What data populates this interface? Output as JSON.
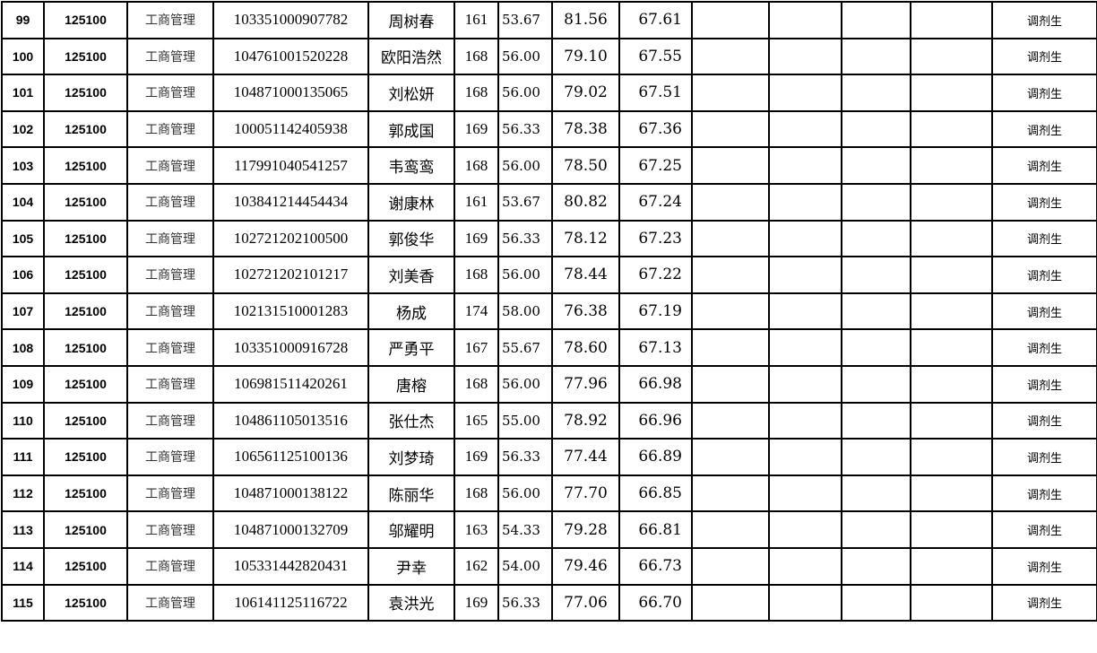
{
  "rows": [
    {
      "no": "99",
      "code": "125100",
      "major": "工商管理",
      "id": "103351000907782",
      "name": "周树春",
      "total": "161",
      "s1": "53.67",
      "s2": "81.56",
      "final": "67.61",
      "note": "调剂生"
    },
    {
      "no": "100",
      "code": "125100",
      "major": "工商管理",
      "id": "104761001520228",
      "name": "欧阳浩然",
      "total": "168",
      "s1": "56.00",
      "s2": "79.10",
      "final": "67.55",
      "note": "调剂生"
    },
    {
      "no": "101",
      "code": "125100",
      "major": "工商管理",
      "id": "104871000135065",
      "name": "刘松妍",
      "total": "168",
      "s1": "56.00",
      "s2": "79.02",
      "final": "67.51",
      "note": "调剂生"
    },
    {
      "no": "102",
      "code": "125100",
      "major": "工商管理",
      "id": "100051142405938",
      "name": "郭成国",
      "total": "169",
      "s1": "56.33",
      "s2": "78.38",
      "final": "67.36",
      "note": "调剂生"
    },
    {
      "no": "103",
      "code": "125100",
      "major": "工商管理",
      "id": "117991040541257",
      "name": "韦鸾鸾",
      "total": "168",
      "s1": "56.00",
      "s2": "78.50",
      "final": "67.25",
      "note": "调剂生"
    },
    {
      "no": "104",
      "code": "125100",
      "major": "工商管理",
      "id": "103841214454434",
      "name": "谢康林",
      "total": "161",
      "s1": "53.67",
      "s2": "80.82",
      "final": "67.24",
      "note": "调剂生"
    },
    {
      "no": "105",
      "code": "125100",
      "major": "工商管理",
      "id": "102721202100500",
      "name": "郭俊华",
      "total": "169",
      "s1": "56.33",
      "s2": "78.12",
      "final": "67.23",
      "note": "调剂生"
    },
    {
      "no": "106",
      "code": "125100",
      "major": "工商管理",
      "id": "102721202101217",
      "name": "刘美香",
      "total": "168",
      "s1": "56.00",
      "s2": "78.44",
      "final": "67.22",
      "note": "调剂生"
    },
    {
      "no": "107",
      "code": "125100",
      "major": "工商管理",
      "id": "102131510001283",
      "name": "杨成",
      "total": "174",
      "s1": "58.00",
      "s2": "76.38",
      "final": "67.19",
      "note": "调剂生"
    },
    {
      "no": "108",
      "code": "125100",
      "major": "工商管理",
      "id": "103351000916728",
      "name": "严勇平",
      "total": "167",
      "s1": "55.67",
      "s2": "78.60",
      "final": "67.13",
      "note": "调剂生"
    },
    {
      "no": "109",
      "code": "125100",
      "major": "工商管理",
      "id": "106981511420261",
      "name": "唐榕",
      "total": "168",
      "s1": "56.00",
      "s2": "77.96",
      "final": "66.98",
      "note": "调剂生"
    },
    {
      "no": "110",
      "code": "125100",
      "major": "工商管理",
      "id": "104861105013516",
      "name": "张仕杰",
      "total": "165",
      "s1": "55.00",
      "s2": "78.92",
      "final": "66.96",
      "note": "调剂生"
    },
    {
      "no": "111",
      "code": "125100",
      "major": "工商管理",
      "id": "106561125100136",
      "name": "刘梦琦",
      "total": "169",
      "s1": "56.33",
      "s2": "77.44",
      "final": "66.89",
      "note": "调剂生"
    },
    {
      "no": "112",
      "code": "125100",
      "major": "工商管理",
      "id": "104871000138122",
      "name": "陈丽华",
      "total": "168",
      "s1": "56.00",
      "s2": "77.70",
      "final": "66.85",
      "note": "调剂生"
    },
    {
      "no": "113",
      "code": "125100",
      "major": "工商管理",
      "id": "104871000132709",
      "name": "邬耀明",
      "total": "163",
      "s1": "54.33",
      "s2": "79.28",
      "final": "66.81",
      "note": "调剂生"
    },
    {
      "no": "114",
      "code": "125100",
      "major": "工商管理",
      "id": "105331442820431",
      "name": "尹幸",
      "total": "162",
      "s1": "54.00",
      "s2": "79.46",
      "final": "66.73",
      "note": "调剂生"
    },
    {
      "no": "115",
      "code": "125100",
      "major": "工商管理",
      "id": "106141125116722",
      "name": "袁洪光",
      "total": "169",
      "s1": "56.33",
      "s2": "77.06",
      "final": "66.70",
      "note": "调剂生"
    }
  ]
}
